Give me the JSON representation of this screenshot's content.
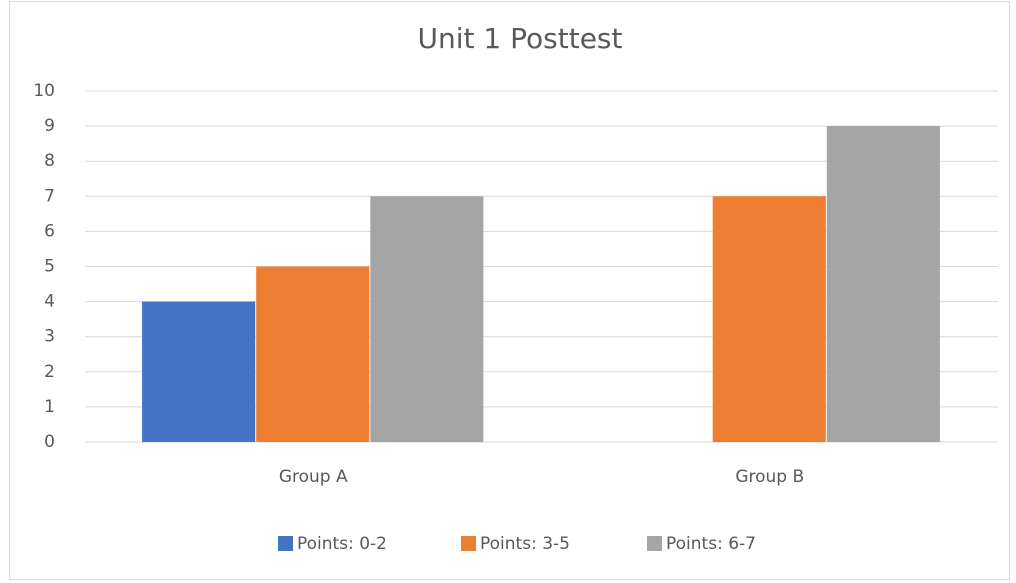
{
  "chart_data": {
    "type": "bar",
    "title": "Unit 1 Posttest",
    "categories": [
      "Group A",
      "Group B"
    ],
    "series": [
      {
        "name": "Points: 0-2",
        "color": "#4472c4",
        "values": [
          4,
          0
        ]
      },
      {
        "name": "Points: 3-5",
        "color": "#ed7d31",
        "values": [
          5,
          7
        ]
      },
      {
        "name": "Points: 6-7",
        "color": "#a5a5a5",
        "values": [
          7,
          9
        ]
      }
    ],
    "ylim": [
      0,
      10
    ],
    "yticks": [
      0,
      1,
      2,
      3,
      4,
      5,
      6,
      7,
      8,
      9,
      10
    ],
    "grid": true,
    "legend": "bottom"
  }
}
